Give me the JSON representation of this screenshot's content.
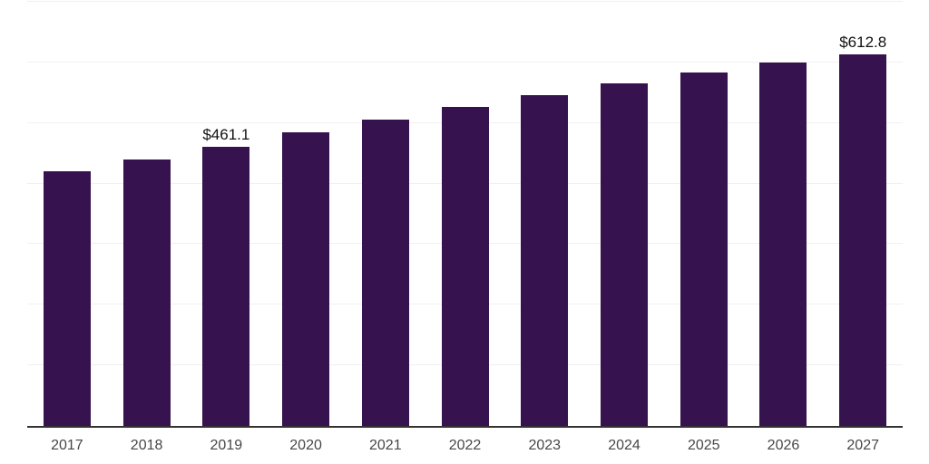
{
  "chart_data": {
    "type": "bar",
    "title": "",
    "xlabel": "",
    "ylabel": "",
    "categories": [
      "2017",
      "2018",
      "2019",
      "2020",
      "2021",
      "2022",
      "2023",
      "2024",
      "2025",
      "2026",
      "2027"
    ],
    "values": [
      420,
      440,
      461.1,
      484,
      505,
      526,
      546,
      566,
      583,
      600,
      612.8
    ],
    "data_labels": [
      "",
      "",
      "$461.1",
      "",
      "",
      "",
      "",
      "",
      "",
      "",
      "$612.8"
    ],
    "ylim": [
      0,
      700
    ],
    "gridline_step": 100,
    "grid": "horizontal-only",
    "legend": "none",
    "y_tick_labels_visible": false
  },
  "colors": {
    "bar": "#36124e",
    "gridline": "#f0f0f3",
    "axis_line": "#333333",
    "x_tick_label": "#474747",
    "value_label": "#111111",
    "background": "#ffffff"
  }
}
